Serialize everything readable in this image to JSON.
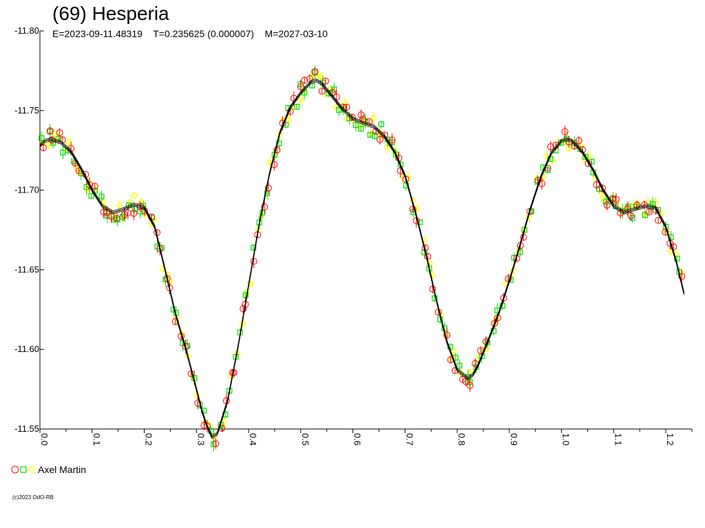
{
  "chart_data": {
    "type": "scatter",
    "title": "(69) Hesperia",
    "subtitle": "E=2023-09-11.48319    T=0.235625 (0.000007)    M=2027-03-10",
    "xlabel": "",
    "ylabel": "",
    "xlim": [
      0.0,
      1.25
    ],
    "ylim": [
      -11.8,
      -11.55
    ],
    "y_inverted": true,
    "x_tick_labels": [
      "0.0",
      "0.1",
      "0.2",
      "0.3",
      "0.4",
      "0.5",
      "0.6",
      "0.7",
      "0.8",
      "0.9",
      "1.0",
      "1.1",
      "1.2"
    ],
    "y_tick_labels": [
      "-11.80",
      "-11.75",
      "-11.70",
      "-11.65",
      "-11.60",
      "-11.55"
    ],
    "grid": false,
    "legend_position": "bottom-left",
    "legend": [
      {
        "label": "Axel Martin",
        "markers": [
          "circle",
          "square",
          "diamond"
        ]
      }
    ],
    "model_curve": {
      "x": [
        0.0,
        0.01,
        0.02,
        0.04,
        0.06,
        0.08,
        0.1,
        0.12,
        0.14,
        0.16,
        0.18,
        0.2,
        0.22,
        0.24,
        0.26,
        0.28,
        0.3,
        0.31,
        0.32,
        0.33,
        0.34,
        0.36,
        0.38,
        0.4,
        0.42,
        0.44,
        0.46,
        0.48,
        0.5,
        0.52,
        0.53,
        0.54,
        0.56,
        0.58,
        0.6,
        0.62,
        0.64,
        0.66,
        0.68,
        0.7,
        0.72,
        0.74,
        0.76,
        0.78,
        0.8,
        0.82,
        0.83,
        0.84,
        0.86,
        0.88,
        0.9,
        0.92,
        0.94,
        0.96,
        0.98,
        1.0,
        1.01,
        1.02,
        1.04,
        1.06,
        1.08,
        1.1,
        1.12,
        1.14,
        1.16,
        1.18,
        1.2,
        1.22,
        1.235
      ],
      "y": [
        -11.728,
        -11.731,
        -11.732,
        -11.73,
        -11.724,
        -11.713,
        -11.7,
        -11.69,
        -11.686,
        -11.688,
        -11.691,
        -11.689,
        -11.677,
        -11.65,
        -11.622,
        -11.6,
        -11.575,
        -11.562,
        -11.552,
        -11.545,
        -11.547,
        -11.568,
        -11.602,
        -11.64,
        -11.678,
        -11.71,
        -11.736,
        -11.752,
        -11.761,
        -11.768,
        -11.769,
        -11.767,
        -11.759,
        -11.751,
        -11.745,
        -11.742,
        -11.74,
        -11.734,
        -11.724,
        -11.709,
        -11.686,
        -11.66,
        -11.631,
        -11.605,
        -11.587,
        -11.582,
        -11.584,
        -11.59,
        -11.606,
        -11.623,
        -11.643,
        -11.665,
        -11.688,
        -11.708,
        -11.723,
        -11.731,
        -11.732,
        -11.731,
        -11.724,
        -11.713,
        -11.7,
        -11.69,
        -11.686,
        -11.688,
        -11.69,
        -11.689,
        -11.677,
        -11.655,
        -11.635
      ]
    },
    "series": [
      {
        "marker": "circle",
        "color": "#ff0000"
      },
      {
        "marker": "square",
        "color": "#00dd00"
      },
      {
        "marker": "diamond",
        "color": "#ffff00"
      }
    ],
    "copyright": "(c)2023 OdO-RB"
  }
}
